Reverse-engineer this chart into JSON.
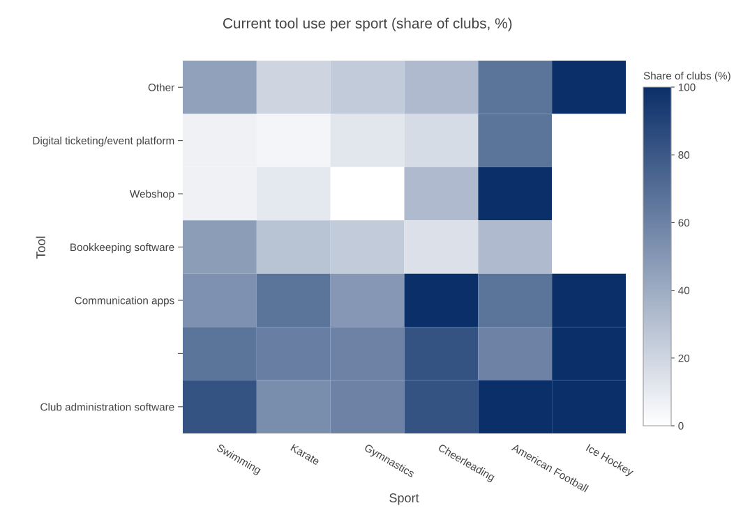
{
  "chart_data": {
    "type": "heatmap",
    "title": "Current tool use per sport (share of clubs, %)",
    "xlabel": "Sport",
    "ylabel": "Tool",
    "clabel": "Share of clubs (%)",
    "categories": [
      "Swimming",
      "Karate",
      "Gymnastics",
      "Cheerleading",
      "American Football",
      "Ice Hockey"
    ],
    "y_categories": [
      "Other",
      "Digital ticketing/event platform",
      "Webshop",
      "Bookkeeping software",
      "Communication apps",
      null,
      "Club administration software"
    ],
    "cells": [
      [
        45,
        20,
        25,
        33,
        67,
        100
      ],
      [
        7,
        5,
        12,
        17,
        67,
        0
      ],
      [
        7,
        11,
        0,
        33,
        100,
        0
      ],
      [
        47,
        29,
        25,
        15,
        33,
        0
      ],
      [
        53,
        67,
        50,
        100,
        67,
        100
      ],
      [
        67,
        62,
        60,
        83,
        60,
        100
      ],
      [
        83,
        55,
        60,
        83,
        100,
        100
      ]
    ],
    "clim": [
      0,
      100
    ],
    "cticks": [
      0,
      20,
      40,
      60,
      80,
      100
    ],
    "grid": false
  }
}
